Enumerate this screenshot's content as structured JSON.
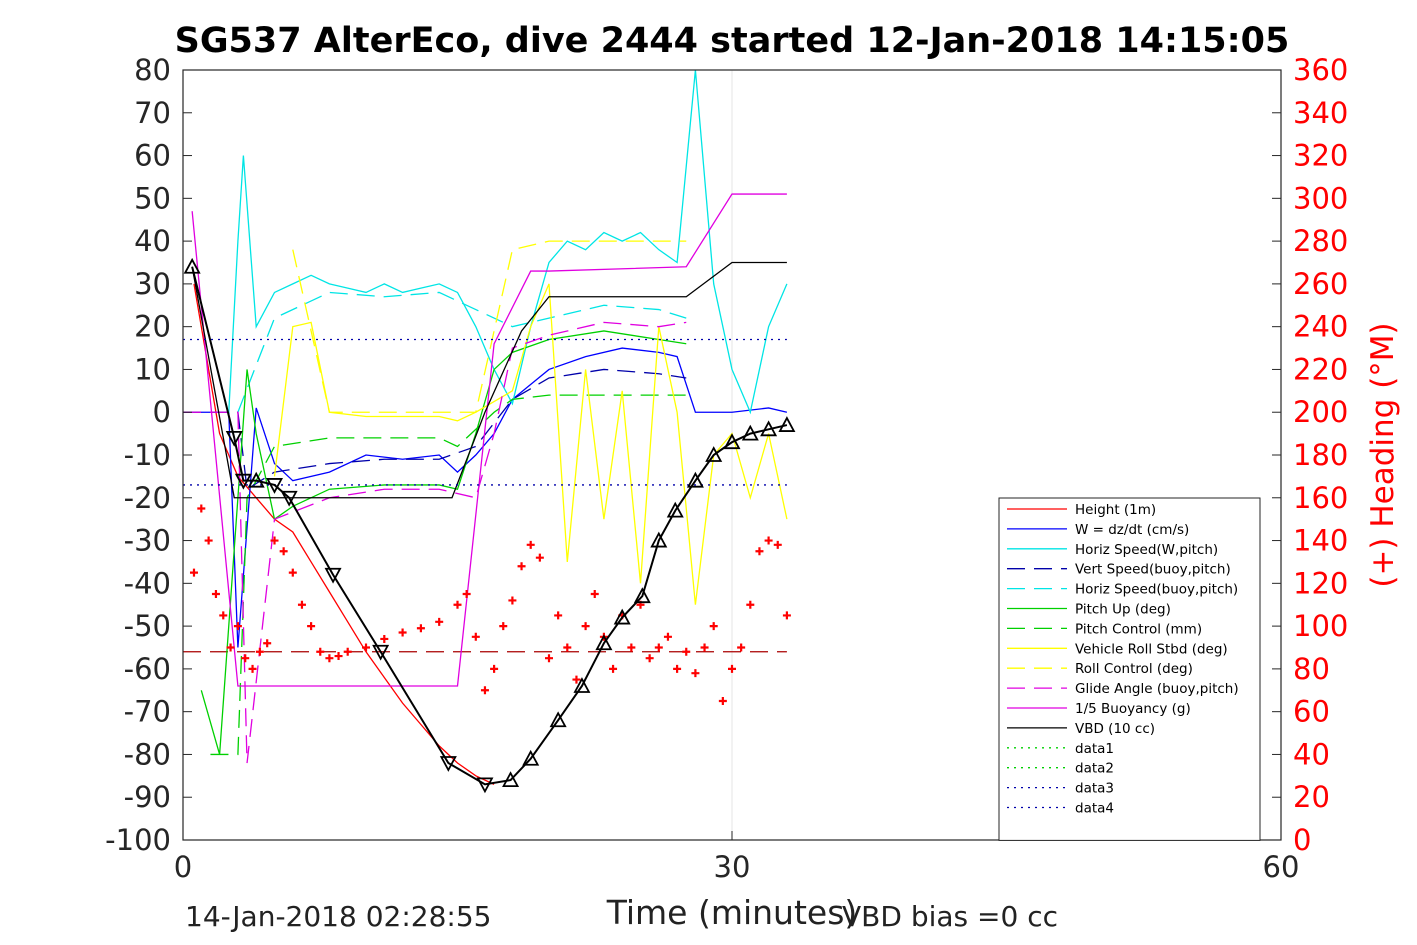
{
  "chart_data": {
    "type": "line",
    "title": "SG537 AlterEco, dive 2444 started 12-Jan-2018 14:15:05",
    "xlabel": "Time (minutes)",
    "ylabel": "",
    "y2label": "(+) Heading (°M)",
    "xlim": [
      0,
      60
    ],
    "ylim": [
      -100,
      80
    ],
    "y2lim": [
      0,
      360
    ],
    "xticks": [
      "0",
      "30",
      "60"
    ],
    "yticks": [
      "80",
      "70",
      "60",
      "50",
      "40",
      "30",
      "20",
      "10",
      "0",
      "-10",
      "-20",
      "-30",
      "-40",
      "-50",
      "-60",
      "-70",
      "-80",
      "-90",
      "-100"
    ],
    "y2ticks": [
      "360",
      "340",
      "320",
      "300",
      "280",
      "260",
      "240",
      "220",
      "200",
      "180",
      "160",
      "140",
      "120",
      "100",
      "80",
      "60",
      "40",
      "20",
      "0"
    ],
    "grid": "x-only",
    "legend_position": "lower-right",
    "footer_left": "14-Jan-2018 02:28:55",
    "footer_right": "VBD bias =0 cc",
    "series": [
      {
        "name": "Height (1m)",
        "color": "#ff0000",
        "style": "solid",
        "x": [
          0.6,
          2,
          3,
          4,
          5,
          6,
          7,
          8,
          9,
          10,
          11,
          12,
          13,
          14,
          15,
          16,
          17
        ],
        "values": [
          30,
          -5,
          -15,
          -20,
          -25,
          -28,
          -35,
          -42,
          -49,
          -56,
          -62,
          -68,
          -73,
          -78,
          -82,
          -85,
          -87
        ]
      },
      {
        "name": "W = dz/dt (cm/s)",
        "color": "#0000ff",
        "style": "solid",
        "x": [
          0,
          2.5,
          3,
          4,
          5,
          6,
          8,
          10,
          12,
          14,
          15,
          16,
          17,
          18,
          20,
          22,
          24,
          26,
          27,
          28,
          30,
          32,
          33
        ],
        "values": [
          0,
          0,
          -55,
          1,
          -12,
          -16,
          -14,
          -10,
          -11,
          -10,
          -14,
          -10,
          -5,
          3,
          10,
          13,
          15,
          14,
          13,
          0,
          0,
          1,
          0
        ]
      },
      {
        "name": "Horiz Speed(W,pitch)",
        "color": "#00e5e5",
        "style": "solid",
        "x": [
          1.5,
          2.5,
          3,
          3.3,
          4,
          5,
          6,
          7,
          8,
          9,
          10,
          11,
          12,
          13,
          14,
          15,
          16,
          17,
          18,
          19,
          20,
          21,
          22,
          23,
          24,
          25,
          26,
          27,
          28,
          29,
          30,
          31,
          32,
          33
        ],
        "values": [
          0,
          0,
          40,
          60,
          20,
          28,
          30,
          32,
          30,
          29,
          28,
          30,
          28,
          29,
          30,
          28,
          20,
          10,
          2,
          20,
          35,
          40,
          38,
          42,
          40,
          42,
          38,
          35,
          80,
          30,
          10,
          0,
          20,
          30
        ]
      },
      {
        "name": "Vert Speed(buoy,pitch)",
        "color": "#0000aa",
        "style": "dashed",
        "x": [
          0,
          3,
          3.5,
          5,
          8,
          11,
          14,
          16,
          18,
          20,
          23,
          26,
          27.5
        ],
        "values": [
          0,
          0,
          -18,
          -14,
          -12,
          -11,
          -11,
          -8,
          3,
          8,
          10,
          9,
          8
        ]
      },
      {
        "name": "Horiz Speed(buoy,pitch)",
        "color": "#00e5e5",
        "style": "dashed",
        "x": [
          3,
          5,
          8,
          11,
          14,
          16,
          18,
          20,
          23,
          26,
          27.5
        ],
        "values": [
          0,
          22,
          28,
          27,
          28,
          24,
          20,
          22,
          25,
          24,
          22
        ]
      },
      {
        "name": "Pitch Up (deg)",
        "color": "#00d000",
        "style": "solid",
        "x": [
          1,
          2,
          3,
          3.5,
          4,
          5,
          6,
          8,
          11,
          14,
          15,
          16,
          17,
          18,
          20,
          23,
          26,
          27.5
        ],
        "values": [
          -65,
          -80,
          -20,
          10,
          -5,
          -25,
          -22,
          -18,
          -17,
          -17,
          -18,
          -5,
          10,
          14,
          17,
          19,
          17,
          16
        ]
      },
      {
        "name": "Pitch Control (mm)",
        "color": "#00d000",
        "style": "dashed",
        "x": [
          1.5,
          3,
          3.5,
          5,
          8,
          11,
          14,
          15,
          17,
          18,
          20,
          23,
          26,
          27.5
        ],
        "values": [
          -80,
          -80,
          -20,
          -8,
          -6,
          -6,
          -6,
          -8,
          0,
          3,
          4,
          4,
          4,
          4
        ]
      },
      {
        "name": "Vehicle Roll Stbd (deg)",
        "color": "#ffff00",
        "style": "solid",
        "x": [
          5,
          6,
          7,
          8,
          10,
          12,
          14,
          15,
          16,
          18,
          19,
          20,
          21,
          22,
          23,
          24,
          25,
          26,
          27,
          28,
          29,
          30,
          31,
          32,
          33
        ],
        "values": [
          -15,
          20,
          21,
          0,
          -1,
          -1,
          -1,
          -2,
          0,
          5,
          20,
          30,
          -35,
          10,
          -25,
          5,
          -40,
          20,
          0,
          -45,
          -10,
          -5,
          -20,
          -5,
          -25
        ]
      },
      {
        "name": "Roll Control (deg)",
        "color": "#ffff00",
        "style": "dashed",
        "x": [
          6,
          8,
          10,
          12,
          14,
          16,
          18,
          20,
          22,
          24,
          26,
          27.5
        ],
        "values": [
          38,
          0,
          0,
          0,
          0,
          0,
          38,
          40,
          40,
          40,
          40,
          40
        ]
      },
      {
        "name": "Glide Angle (buoy,pitch)",
        "color": "#e000e0",
        "style": "dashed",
        "x": [
          0,
          3,
          3.5,
          5,
          8,
          11,
          14,
          16,
          17,
          18,
          20,
          23,
          26,
          27.5
        ],
        "values": [
          0,
          0,
          -82,
          -25,
          -20,
          -18,
          -18,
          -20,
          -5,
          15,
          18,
          21,
          20,
          21
        ]
      },
      {
        "name": "1/5 Buoyancy (g)",
        "color": "#e000e0",
        "style": "solid",
        "x": [
          0.5,
          3,
          15,
          17,
          19,
          20,
          27.5,
          30,
          33
        ],
        "values": [
          47,
          -64,
          -64,
          16,
          33,
          33,
          34,
          51,
          51
        ]
      },
      {
        "name": "VBD (10 cc)",
        "color": "#000000",
        "style": "solid",
        "x": [
          0.5,
          2.8,
          14.7,
          16.5,
          18.5,
          20,
          27.5,
          30,
          33
        ],
        "values": [
          34,
          -20,
          -20,
          0,
          19,
          27,
          27,
          35,
          35
        ]
      },
      {
        "name": "data1",
        "color": "#00d000",
        "style": "dotted",
        "x": [],
        "values": []
      },
      {
        "name": "data2",
        "color": "#00d000",
        "style": "dotted",
        "x": [],
        "values": []
      },
      {
        "name": "data3",
        "color": "#0000aa",
        "style": "dotted",
        "x": [
          0,
          33
        ],
        "values": [
          17,
          17
        ]
      },
      {
        "name": "data4",
        "color": "#0000aa",
        "style": "dotted",
        "x": [
          0,
          33
        ],
        "values": [
          -17,
          -17
        ]
      }
    ],
    "reference_line": {
      "color": "#aa0000",
      "style": "dashed",
      "x": [
        0,
        33
      ],
      "values": [
        -56,
        -56
      ]
    },
    "depth_trace": {
      "color": "#000000",
      "x": [
        0.5,
        2.8,
        3.3,
        4,
        5,
        5.8,
        8.2,
        10.8,
        14.5,
        16.5,
        17.9,
        19,
        20.5,
        21.8,
        23,
        24,
        25.1,
        26,
        26.9,
        28,
        29,
        30,
        31,
        32,
        33
      ],
      "values": [
        34,
        -6,
        -16,
        -16,
        -17,
        -20,
        -38,
        -56,
        -82,
        -87,
        -86,
        -81,
        -72,
        -64,
        -54,
        -48,
        -43,
        -30,
        -23,
        -16,
        -10,
        -7,
        -5,
        -4,
        -3
      ]
    },
    "heading_points": {
      "color": "#ff0000",
      "axis": "right",
      "x": [
        0.6,
        1,
        1.4,
        1.8,
        2.2,
        2.6,
        3,
        3.4,
        3.8,
        4.2,
        4.6,
        5,
        5.5,
        6,
        6.5,
        7,
        7.5,
        8,
        8.5,
        9,
        10,
        11,
        12,
        13,
        14,
        15,
        15.5,
        16,
        16.5,
        17,
        17.5,
        18,
        18.5,
        19,
        19.5,
        20,
        20.5,
        21,
        21.5,
        22,
        22.5,
        23,
        23.5,
        24,
        24.5,
        25,
        25.5,
        26,
        26.5,
        27,
        27.5,
        28,
        28.5,
        29,
        29.5,
        30,
        30.5,
        31,
        31.5,
        32,
        32.5,
        33
      ],
      "values": [
        125,
        155,
        140,
        115,
        105,
        90,
        100,
        85,
        80,
        88,
        92,
        140,
        135,
        125,
        110,
        100,
        88,
        85,
        86,
        88,
        90,
        94,
        97,
        99,
        102,
        110,
        115,
        95,
        70,
        80,
        100,
        112,
        128,
        138,
        132,
        85,
        105,
        90,
        75,
        100,
        115,
        95,
        80,
        105,
        90,
        110,
        85,
        90,
        95,
        80,
        88,
        78,
        90,
        100,
        65,
        80,
        90,
        110,
        135,
        140,
        138,
        105
      ]
    }
  }
}
